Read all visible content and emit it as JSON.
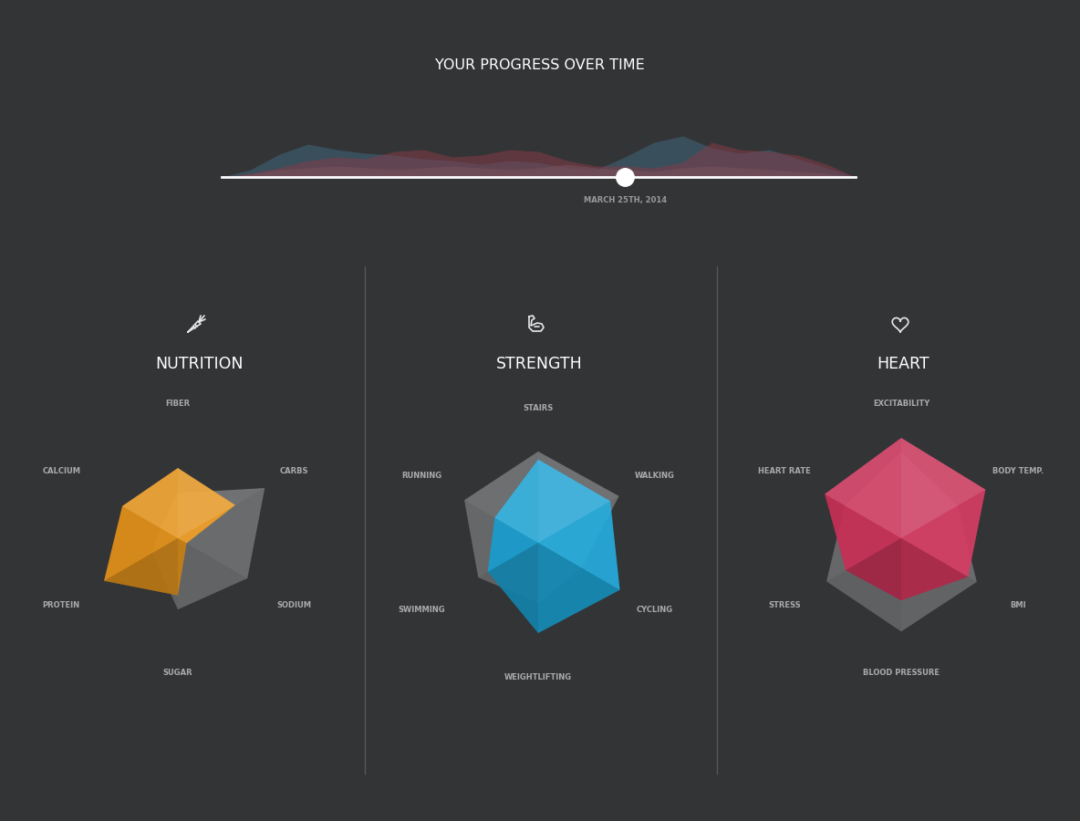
{
  "title": "YOUR PROGRESS OVER TIME",
  "chart_data": [
    {
      "type": "area",
      "categories": [
        null,
        null,
        null,
        null,
        null,
        null,
        null,
        null,
        null,
        null,
        null,
        null,
        null,
        null,
        "MARCH 25TH, 2014",
        null,
        null,
        null,
        null,
        null,
        null,
        null,
        null
      ],
      "series": [
        {
          "color": "#3f6a80",
          "values": [
            0,
            8,
            25,
            36,
            30,
            26,
            24,
            20,
            18,
            14,
            18,
            16,
            10,
            8,
            22,
            38,
            45,
            32,
            26,
            30,
            20,
            10,
            0
          ]
        },
        {
          "color": "#8a3a48",
          "values": [
            0,
            4,
            10,
            18,
            22,
            20,
            28,
            30,
            22,
            24,
            30,
            28,
            18,
            12,
            12,
            10,
            16,
            38,
            30,
            28,
            24,
            14,
            0
          ]
        },
        {
          "color": "#7a5560",
          "values": [
            0,
            3,
            8,
            10,
            12,
            10,
            8,
            10,
            12,
            10,
            8,
            10,
            14,
            10,
            8,
            6,
            10,
            12,
            10,
            8,
            6,
            4,
            0
          ]
        }
      ],
      "ylim": [
        0,
        50
      ],
      "tick_labels": "x"
    },
    {
      "type": "radar",
      "title": "NUTRITION",
      "categories": [
        "FIBER",
        "CARBS",
        "SODIUM",
        "SUGAR",
        "PROTEIN",
        "CALCIUM"
      ],
      "series": [
        {
          "color": "#6d6e70",
          "values": [
            45,
            100,
            80,
            71,
            30,
            20
          ]
        },
        {
          "color": "#f09a1a",
          "values": [
            70,
            66,
            10,
            57,
            85,
            64
          ]
        }
      ],
      "ylim": [
        0,
        100
      ],
      "tick_labels": "x"
    },
    {
      "type": "radar",
      "title": "STRENGTH",
      "categories": [
        "STAIRS",
        "WALKING",
        "CYCLING",
        "WEIGHTLIFTING",
        "SWIMMING",
        "RUNNING"
      ],
      "series": [
        {
          "color": "#6d6e70",
          "values": [
            91,
            93,
            50,
            60,
            69,
            85
          ]
        },
        {
          "color": "#1aa8dc",
          "values": [
            83,
            83,
            94,
            90,
            58,
            50
          ]
        }
      ],
      "ylim": [
        0,
        100
      ],
      "tick_labels": "x"
    },
    {
      "type": "radar",
      "title": "HEART",
      "categories": [
        "EXCITABILITY",
        "BODY TEMP.",
        "BMI",
        "BLOOD PRESSURE",
        "STRESS",
        "HEART RATE"
      ],
      "series": [
        {
          "color": "#6d6e70",
          "values": [
            86,
            65,
            87,
            93,
            86,
            65
          ]
        },
        {
          "color": "#d4325a",
          "values": [
            100,
            97,
            77,
            62,
            64,
            88
          ]
        }
      ],
      "ylim": [
        0,
        100
      ],
      "tick_labels": "x"
    }
  ]
}
